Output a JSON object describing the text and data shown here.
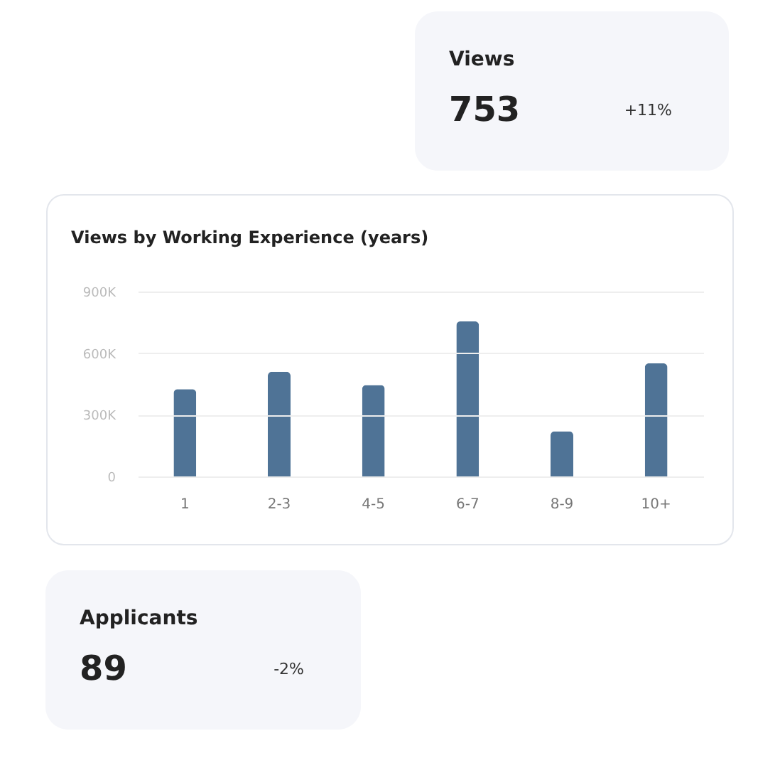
{
  "chart_data": [
    {
      "type": "other",
      "title": "Views",
      "annotations": [
        "753",
        "+11%"
      ]
    },
    {
      "type": "bar",
      "title": "Views by Working Experience (years)",
      "categories": [
        "1",
        "2-3",
        "4-5",
        "6-7",
        "8-9",
        "10+"
      ],
      "values": [
        425000,
        510000,
        445000,
        755000,
        220000,
        550000
      ],
      "color": "#4f7396",
      "ylim": [
        0,
        900000
      ],
      "yticks": [
        0,
        {
          "value": 300000,
          "label": "300K"
        },
        {
          "value": 600000,
          "label": "600K"
        },
        {
          "value": 900000,
          "label": "900K"
        }
      ],
      "grid": "y"
    },
    {
      "type": "other",
      "title": "Applicants",
      "annotations": [
        "89",
        "-2%"
      ]
    }
  ]
}
